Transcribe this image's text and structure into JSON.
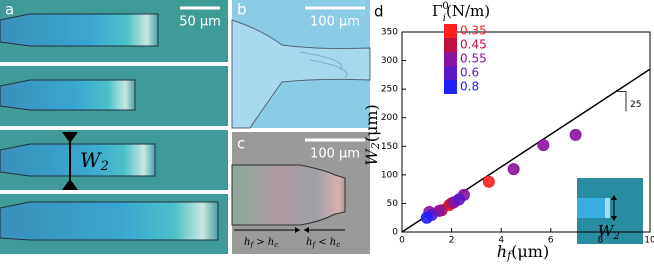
{
  "panels": {
    "a": {
      "label": "a",
      "scale": "50 µm",
      "width_label": {
        "main": "W",
        "sub": "2"
      }
    },
    "b": {
      "label": "b",
      "scale": "100 µm"
    },
    "c": {
      "label": "c",
      "scale": "100 µm",
      "left_note": {
        "h": "h",
        "sub1": "f",
        "op": " > h",
        "sub2": "c"
      },
      "right_note": {
        "h": "h",
        "sub1": "f",
        "op": " < h",
        "sub2": "c"
      }
    }
  },
  "chart_data": {
    "type": "scatter",
    "label": "d",
    "xlabel": {
      "main": "h",
      "sub": "f",
      "unit": "(μm)"
    },
    "ylabel": {
      "main": "W",
      "sub": "2",
      "unit": "(μm)"
    },
    "legend_title": {
      "main": "Γ",
      "sup": "0",
      "sub": "i",
      "unit": "(N/m)"
    },
    "xlim": [
      0,
      10
    ],
    "ylim": [
      0,
      350
    ],
    "xticks": [
      0,
      2,
      4,
      6,
      8,
      10
    ],
    "yticks": [
      0,
      50,
      100,
      150,
      200,
      250,
      300,
      350
    ],
    "series": [
      {
        "name": "0.35",
        "color": "#ff2020",
        "x": [
          1.9,
          3.5
        ],
        "values": [
          47,
          88
        ]
      },
      {
        "name": "0.45",
        "color": "#c01040",
        "x": [
          1.6,
          2.0
        ],
        "values": [
          38,
          50
        ]
      },
      {
        "name": "0.55",
        "color": "#8a14a0",
        "x": [
          1.1,
          1.5,
          2.1,
          2.5,
          4.5,
          5.7,
          7.0
        ],
        "values": [
          35,
          37,
          52,
          65,
          110,
          152,
          170
        ]
      },
      {
        "name": "0.6",
        "color": "#5a18c8",
        "x": [
          1.2,
          2.3
        ],
        "values": [
          30,
          57
        ]
      },
      {
        "name": "0.8",
        "color": "#2020ff",
        "x": [
          1.0
        ],
        "values": [
          25
        ]
      }
    ],
    "fit_line": {
      "x": [
        0,
        10
      ],
      "values": [
        0,
        285
      ]
    },
    "slope_label": "25",
    "inset_label": {
      "main": "W",
      "sub": "2"
    }
  }
}
